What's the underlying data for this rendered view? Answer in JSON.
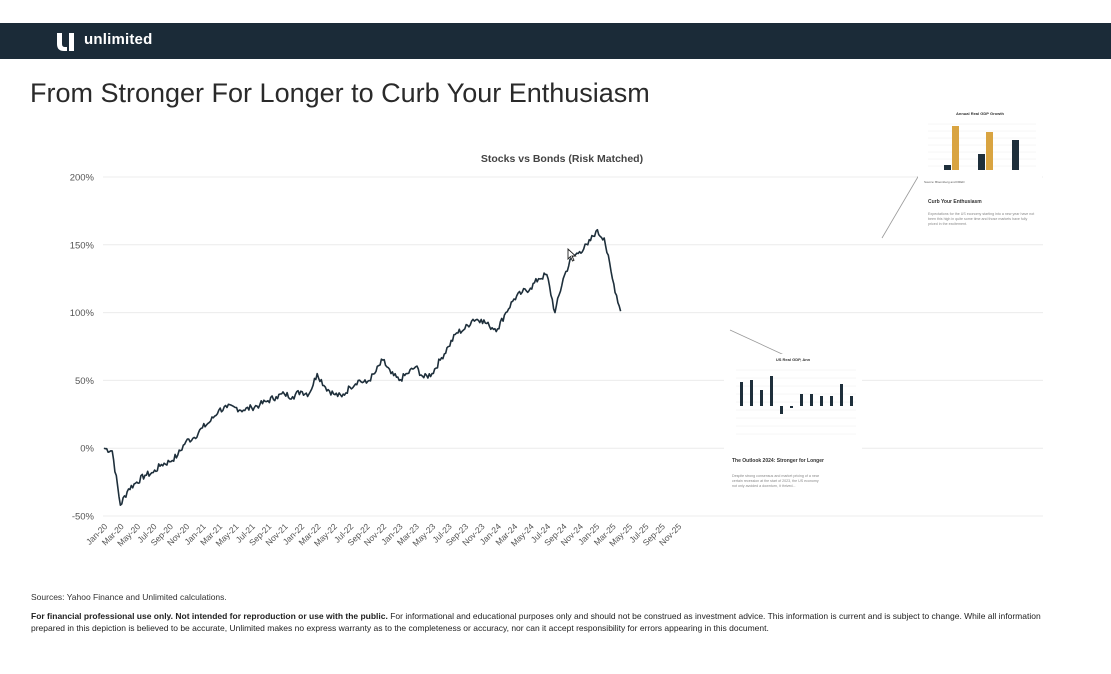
{
  "brand": {
    "name": "unlimited"
  },
  "page": {
    "title": "From Stronger For Longer to Curb Your Enthusiasm"
  },
  "footer": {
    "sources": "Sources: Yahoo Finance and Unlimited calculations.",
    "disclaimer_bold": "For financial professional use only.  Not intended for reproduction or use with the public.",
    "disclaimer_text": " For informational and educational purposes only and should not be construed as investment advice. This information is current and is subject to change. While all information prepared in this depiction is believed to be accurate, Unlimited makes no express warranty as to the completeness or accuracy, nor can it accept responsibility for errors appearing in this document."
  },
  "insets": {
    "upper": {
      "chart_title": "Annual Real GDP Growth",
      "heading": "Curb Your Enthusiasm",
      "body": "Expectations for the US economy starting into a new year have not been this high in quite some time and those markets have fully priced in the excitement.",
      "source": "Source: Bloomberg and FRED"
    },
    "lower": {
      "chart_title": "US Real GDP, Ann",
      "heading": "The Outlook 2024: Stronger for Longer",
      "body": "Despite strong consensus and market pricing of a near certain recession at the start of 2023, the US economy not only avoided a downturn, it thrived..."
    }
  },
  "colors": {
    "header": "#1b2b38",
    "line": "#1e2f3b",
    "gold": "#d9a441",
    "dark": "#1e2f3b"
  },
  "chart_data": {
    "type": "line",
    "title": "Stocks vs Bonds (Risk Matched)",
    "xlabel": "",
    "ylabel": "",
    "ylim": [
      -50,
      200
    ],
    "yticks": [
      -50,
      0,
      50,
      100,
      150,
      200
    ],
    "ytick_labels": [
      "-50%",
      "0%",
      "50%",
      "100%",
      "150%",
      "200%"
    ],
    "xtick_labels": [
      "Jan-20",
      "Mar-20",
      "May-20",
      "Jul-20",
      "Sep-20",
      "Nov-20",
      "Jan-21",
      "Mar-21",
      "May-21",
      "Jul-21",
      "Sep-21",
      "Nov-21",
      "Jan-22",
      "Mar-22",
      "May-22",
      "Jul-22",
      "Sep-22",
      "Nov-22",
      "Jan-23",
      "Mar-23",
      "May-23",
      "Jul-23",
      "Sep-23",
      "Nov-23",
      "Jan-24",
      "Mar-24",
      "May-24",
      "Jul-24",
      "Sep-24",
      "Nov-24",
      "Jan-25",
      "Mar-25",
      "May-25",
      "Jul-25",
      "Sep-25",
      "Nov-25"
    ],
    "grid": true,
    "series": [
      {
        "x": [
          "2020-01",
          "2020-02",
          "2020-03",
          "2020-04",
          "2020-05",
          "2020-06",
          "2020-07",
          "2020-08",
          "2020-09",
          "2020-10",
          "2020-11",
          "2020-12",
          "2021-01",
          "2021-02",
          "2021-03",
          "2021-04",
          "2021-05",
          "2021-06",
          "2021-07",
          "2021-08",
          "2021-09",
          "2021-10",
          "2021-11",
          "2021-12",
          "2022-01",
          "2022-02",
          "2022-03",
          "2022-04",
          "2022-05",
          "2022-06",
          "2022-07",
          "2022-08",
          "2022-09",
          "2022-10",
          "2022-11",
          "2022-12",
          "2023-01",
          "2023-02",
          "2023-03",
          "2023-04",
          "2023-05",
          "2023-06",
          "2023-07",
          "2023-08",
          "2023-09",
          "2023-10",
          "2023-11",
          "2023-12",
          "2024-01",
          "2024-02",
          "2024-03",
          "2024-04",
          "2024-05",
          "2024-06",
          "2024-07",
          "2024-08",
          "2024-09",
          "2024-10",
          "2024-11",
          "2024-12",
          "2025-01",
          "2025-02",
          "2025-03",
          "2025-04"
        ],
        "values": [
          0,
          -2,
          -42,
          -30,
          -25,
          -20,
          -18,
          -12,
          -10,
          -5,
          5,
          8,
          15,
          20,
          28,
          30,
          30,
          28,
          30,
          32,
          35,
          38,
          40,
          38,
          42,
          40,
          55,
          45,
          40,
          38,
          45,
          50,
          48,
          55,
          65,
          55,
          50,
          55,
          60,
          52,
          55,
          65,
          75,
          85,
          88,
          95,
          95,
          90,
          88,
          100,
          110,
          115,
          118,
          125,
          128,
          100,
          125,
          140,
          145,
          150,
          160,
          155,
          125,
          101
        ]
      }
    ]
  }
}
